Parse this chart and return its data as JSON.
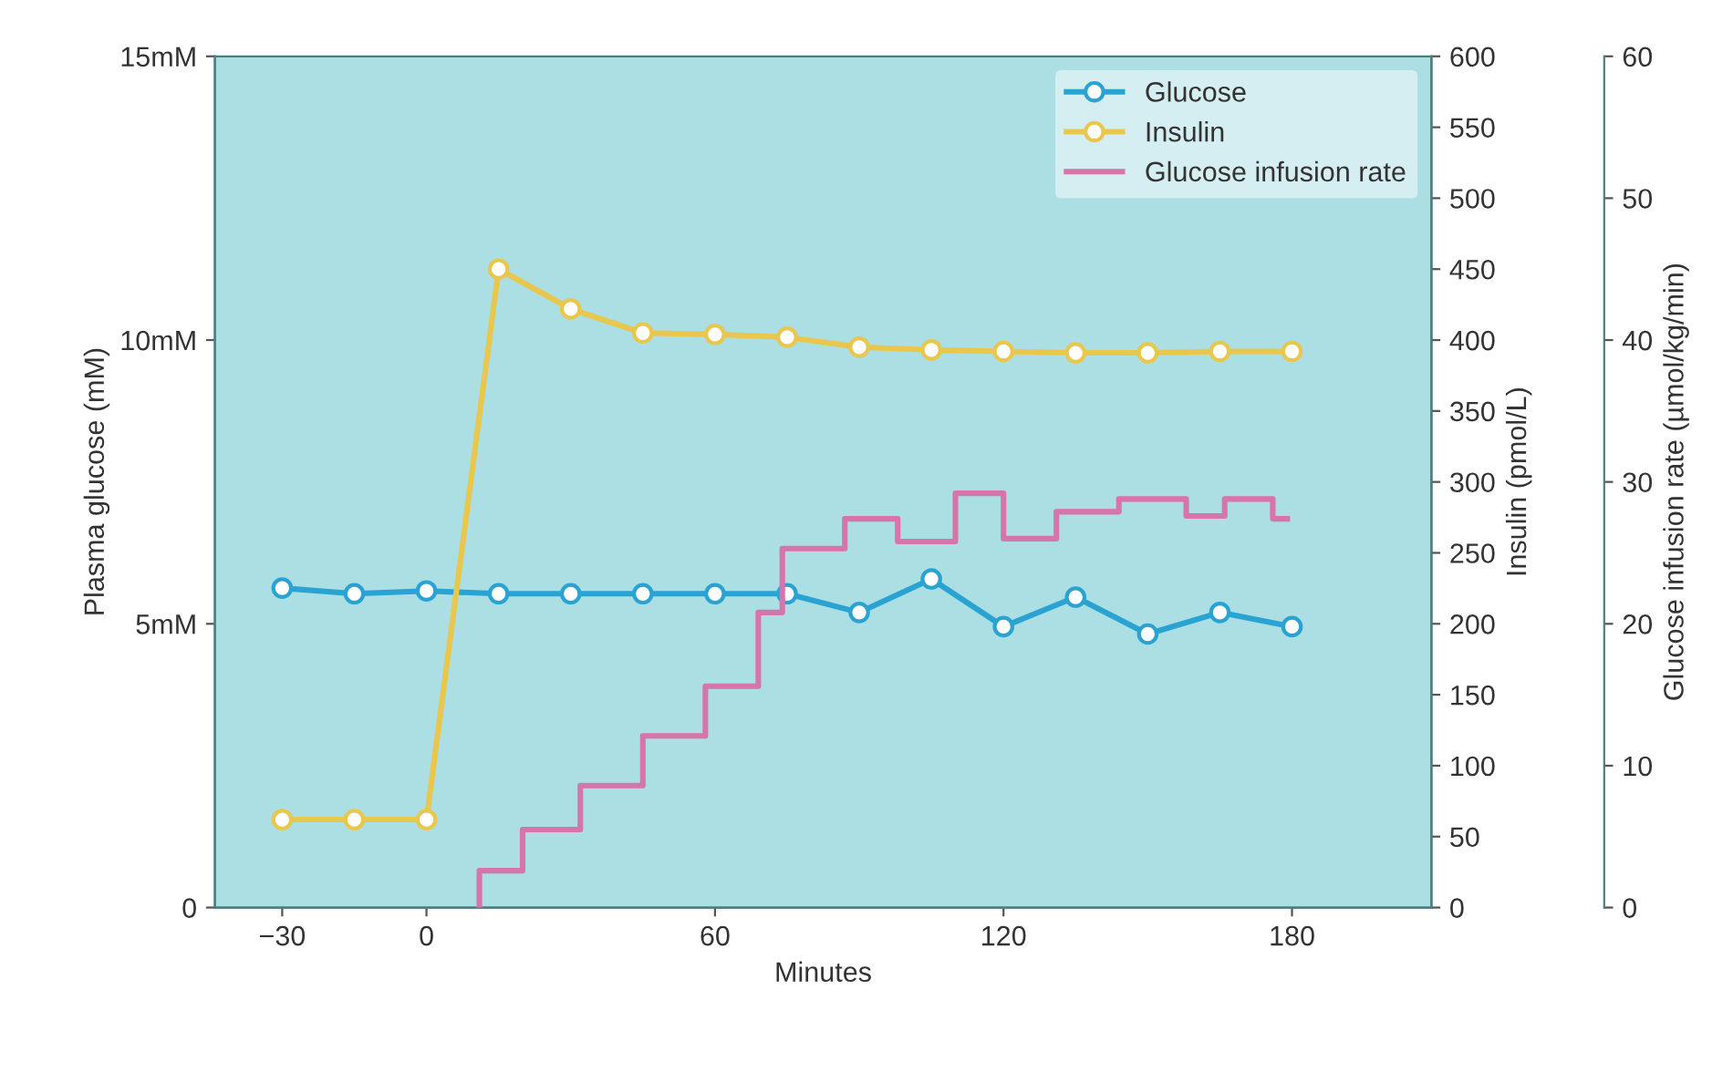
{
  "chart_data": {
    "type": "line",
    "xlabel": "Minutes",
    "ylabel": "Plasma glucose (mM)",
    "y2label": "Insulin (pmol/L)",
    "y3label": "Glucose infusion rate (µmol/kg/min)",
    "xlim": [
      -44,
      209
    ],
    "xticks": [
      {
        "value": -30,
        "label": "−30"
      },
      0,
      60,
      120,
      180
    ],
    "ylim": [
      0,
      15
    ],
    "yticks": [
      0,
      {
        "value": 5,
        "label": "5mM"
      },
      {
        "value": 10,
        "label": "10mM"
      },
      {
        "value": 15,
        "label": "15mM"
      }
    ],
    "y2lim": [
      0,
      600
    ],
    "y2ticks": [
      0,
      50,
      100,
      150,
      200,
      250,
      300,
      350,
      400,
      450,
      500,
      550,
      600
    ],
    "y3lim": [
      0,
      60
    ],
    "y3ticks": [
      0,
      10,
      20,
      30,
      40,
      50,
      60
    ],
    "legend": "top right",
    "grid": false,
    "series": [
      {
        "name": "Glucose",
        "color": "#2aa3d2",
        "marker": "circle",
        "x": [
          -30,
          -15,
          0,
          15,
          30,
          45,
          60,
          75,
          90,
          105,
          120,
          135,
          150,
          165,
          180
        ],
        "values": [
          5.63,
          5.53,
          5.58,
          5.53,
          5.53,
          5.53,
          5.53,
          5.53,
          5.2,
          5.79,
          4.95,
          5.47,
          4.82,
          5.2,
          4.95
        ]
      },
      {
        "name": "Insulin",
        "axis": "y2",
        "color": "#e9c64c",
        "marker": "circle",
        "x": [
          -30,
          -15,
          0,
          15,
          30,
          45,
          60,
          75,
          90,
          105,
          120,
          135,
          150,
          165,
          180
        ],
        "values": [
          62,
          62,
          62,
          450,
          422,
          405,
          404,
          402,
          395,
          393,
          392,
          391,
          391,
          392,
          392
        ]
      },
      {
        "name": "Glucose infusion rate",
        "type": "step",
        "axis": "y3",
        "color": "#d774a9",
        "marker": "none",
        "x": [
          11,
          20,
          32,
          45,
          58,
          69,
          74,
          87,
          98,
          110,
          120,
          131,
          144,
          158,
          166,
          176,
          179
        ],
        "values": [
          0,
          2.6,
          5.5,
          8.6,
          12.1,
          15.6,
          20.8,
          25.3,
          27.4,
          25.8,
          29.2,
          26.0,
          27.9,
          28.8,
          27.6,
          28.8,
          27.4
        ]
      }
    ]
  }
}
